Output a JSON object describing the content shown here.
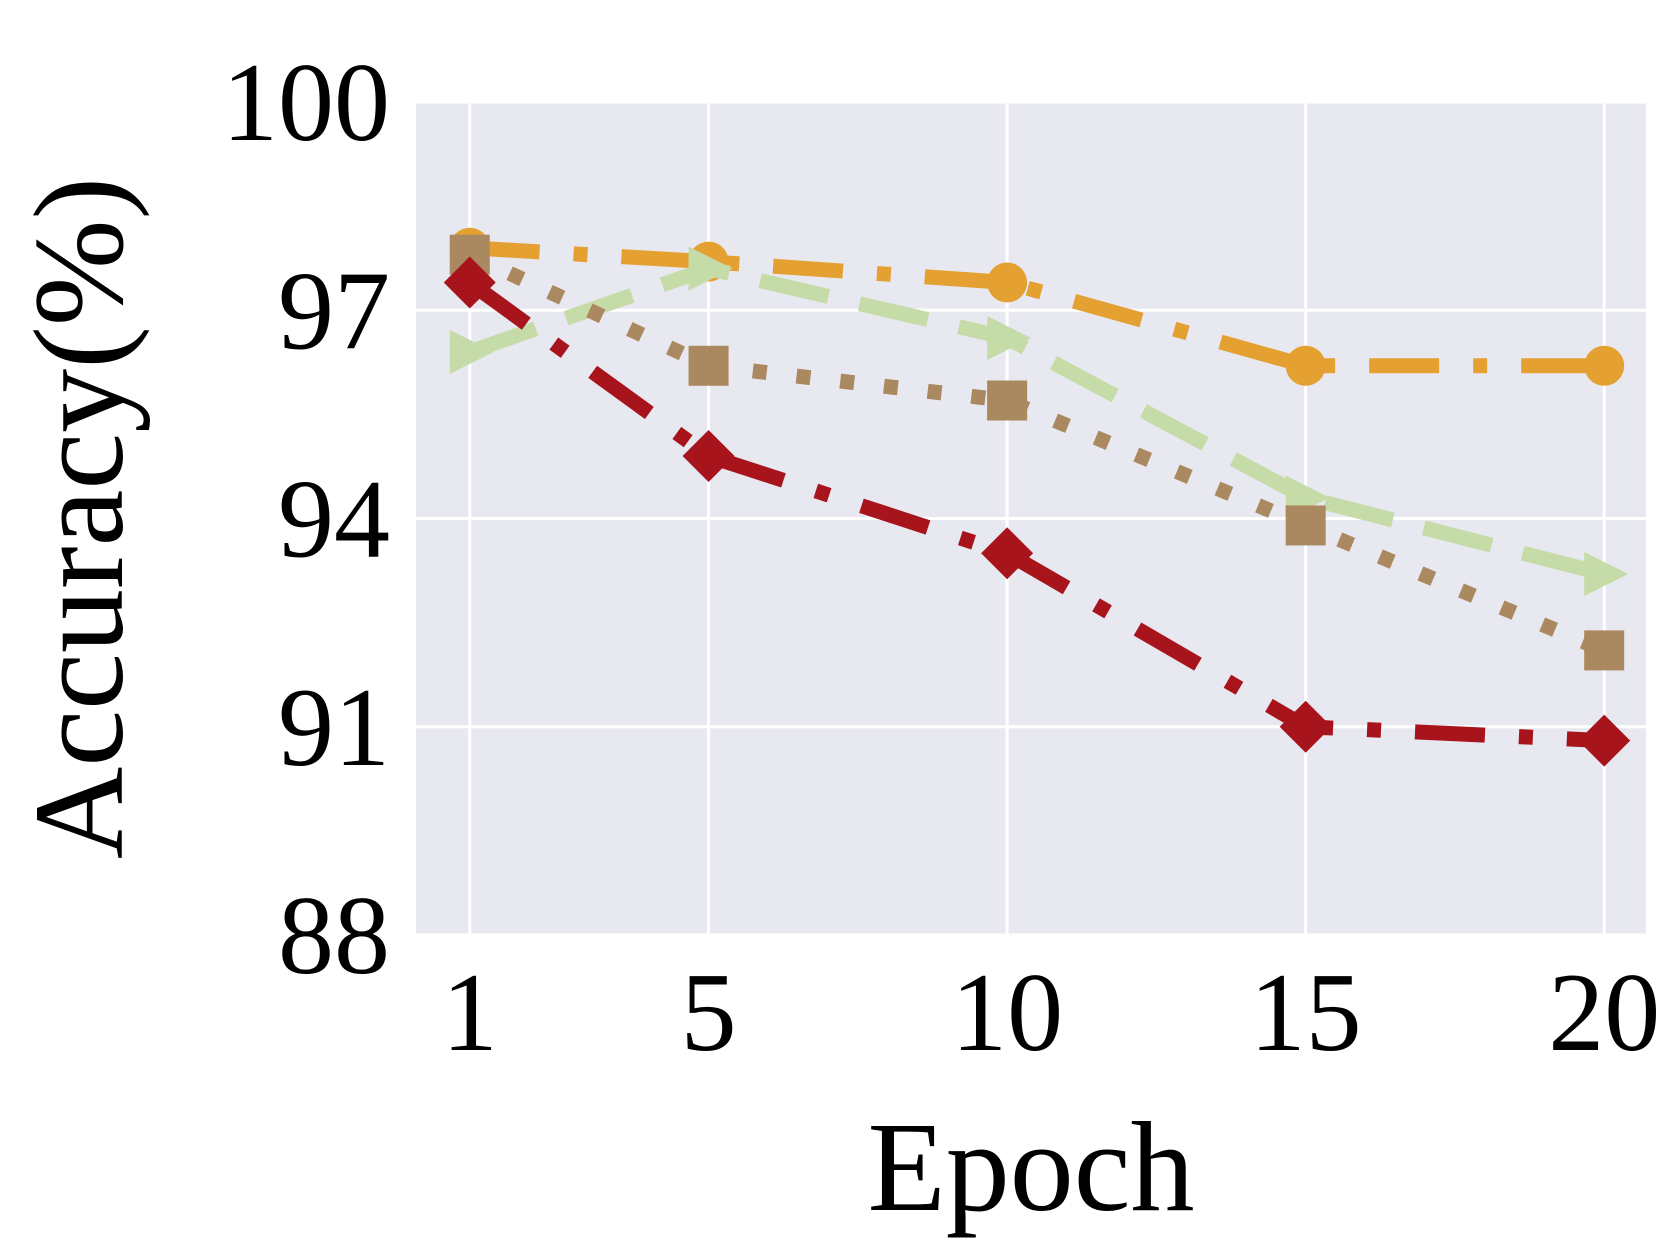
{
  "chart_data": {
    "type": "line",
    "title": "",
    "xlabel": "Epoch",
    "ylabel": "Accuracy(%)",
    "x": [
      1,
      5,
      10,
      15,
      20
    ],
    "x_tick_labels": [
      "1",
      "5",
      "10",
      "15",
      "20"
    ],
    "y_ticks": [
      88,
      91,
      94,
      97,
      100
    ],
    "y_tick_labels": [
      "88",
      "91",
      "94",
      "97",
      "100"
    ],
    "xlim": [
      0.1,
      20.7
    ],
    "ylim": [
      88,
      100
    ],
    "grid": true,
    "background": "#e8e8f0",
    "series": [
      {
        "color": "#e5a032",
        "marker": "circle",
        "dash": "dashdot",
        "values": [
          97.9,
          97.7,
          97.4,
          96.2,
          96.2
        ]
      },
      {
        "color": "#c5dba8",
        "marker": "triangle-right",
        "dash": "dashed",
        "values": [
          96.4,
          97.6,
          96.6,
          94.3,
          93.2
        ]
      },
      {
        "color": "#aa8860",
        "marker": "square",
        "dash": "dotted",
        "values": [
          97.8,
          96.2,
          95.7,
          93.9,
          92.1
        ]
      },
      {
        "color": "#a8141c",
        "marker": "diamond",
        "dash": "dashdot",
        "values": [
          97.4,
          94.9,
          93.5,
          91.0,
          90.8
        ]
      }
    ]
  }
}
